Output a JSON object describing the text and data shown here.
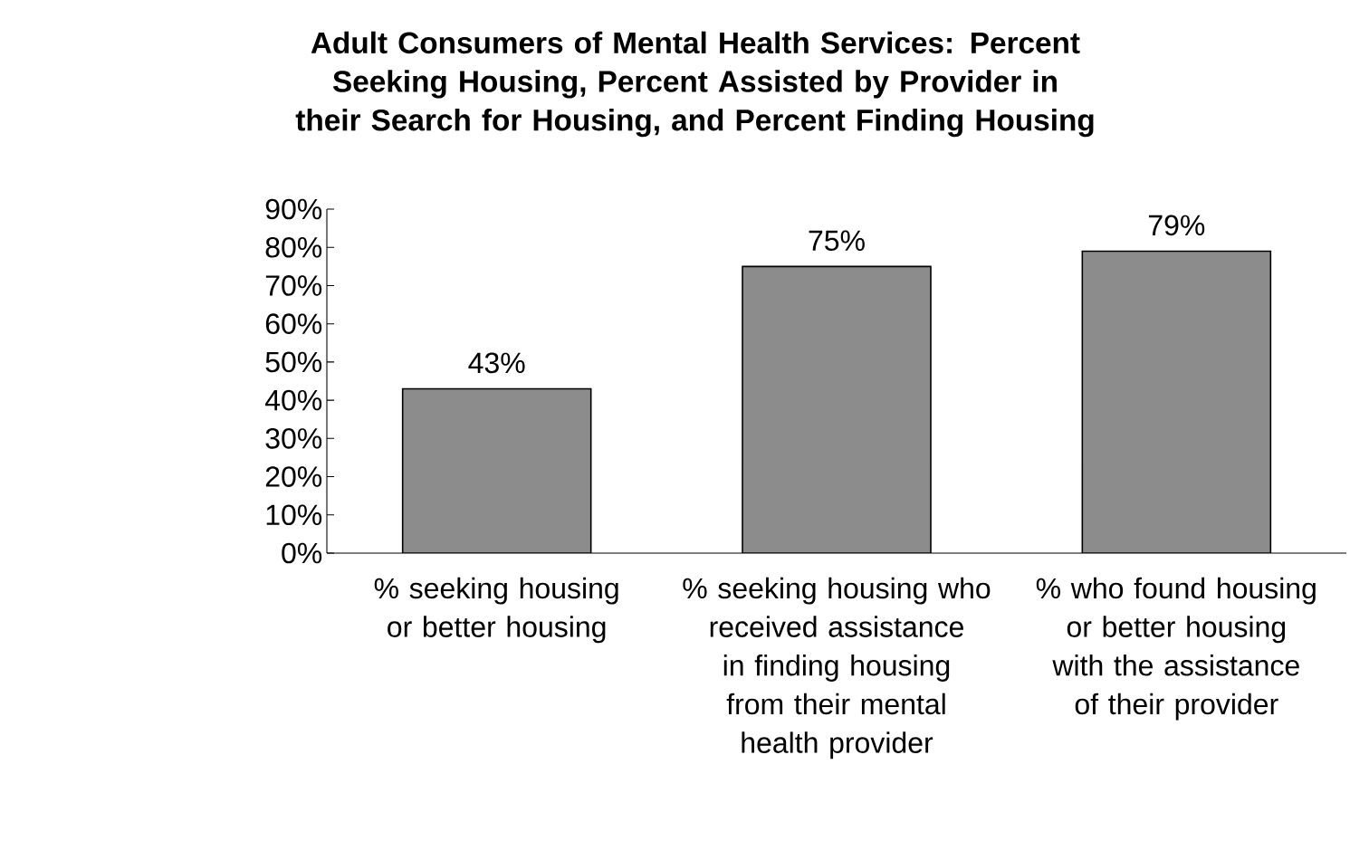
{
  "chart_data": {
    "type": "bar",
    "title": "Adult Consumers of Mental Health Services:  Percent Seeking Housing, Percent Assisted by Provider in their Search for Housing, and Percent Finding Housing",
    "categories": [
      "% seeking housing or better housing",
      "% seeking housing who received assistance in finding housing from their mental health provider",
      "% who found housing or better housing with the assistance of their provider"
    ],
    "values": [
      43,
      75,
      79
    ],
    "color": "#8c8c8c",
    "data_labels": true,
    "value_labels": [
      "43%",
      "75%",
      "79%"
    ],
    "ylim": [
      0,
      90
    ],
    "yticks": [
      {
        "value": 0,
        "label": "0%"
      },
      {
        "value": 10,
        "label": "10%"
      },
      {
        "value": 20,
        "label": "20%"
      },
      {
        "value": 30,
        "label": "30%"
      },
      {
        "value": 40,
        "label": "40%"
      },
      {
        "value": 50,
        "label": "50%"
      },
      {
        "value": 60,
        "label": "60%"
      },
      {
        "value": 70,
        "label": "70%"
      },
      {
        "value": 80,
        "label": "80%"
      },
      {
        "value": 90,
        "label": "90%"
      }
    ],
    "grid": false
  }
}
